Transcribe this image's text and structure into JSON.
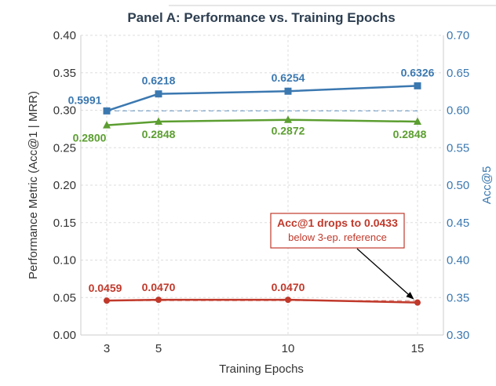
{
  "chart_data": {
    "type": "line",
    "title": "Panel A: Performance vs. Training Epochs",
    "xlabel": "Training Epochs",
    "ylabel": "Performance Metric (Acc@1 | MRR)",
    "y2label": "Acc@5",
    "x": [
      3,
      5,
      10,
      15
    ],
    "xticks": [
      "3",
      "5",
      "10",
      "15"
    ],
    "ylim": [
      0.0,
      0.4
    ],
    "yticks": [
      "0.00",
      "0.05",
      "0.10",
      "0.15",
      "0.20",
      "0.25",
      "0.30",
      "0.35",
      "0.40"
    ],
    "y2lim": [
      0.3,
      0.7
    ],
    "y2ticks": [
      "0.30",
      "0.35",
      "0.40",
      "0.45",
      "0.50",
      "0.55",
      "0.60",
      "0.65",
      "0.70"
    ],
    "grid": true,
    "series": [
      {
        "axis": "right",
        "color": "#3b78b0",
        "marker": "square",
        "values": [
          0.5991,
          0.6218,
          0.6254,
          0.6326
        ],
        "labels": [
          "0.5991",
          "0.6218",
          "0.6254",
          "0.6326"
        ],
        "reference": 0.5991
      },
      {
        "axis": "left",
        "color": "#5c9e31",
        "marker": "triangle",
        "values": [
          0.28,
          0.2848,
          0.2872,
          0.2848
        ],
        "labels": [
          "0.2800",
          "0.2848",
          "0.2872",
          "0.2848"
        ]
      },
      {
        "axis": "left",
        "color": "#c0392b",
        "marker": "circle",
        "values": [
          0.0459,
          0.047,
          0.047,
          0.0433
        ],
        "labels": [
          "0.0459",
          "0.0470",
          "0.0470",
          ""
        ],
        "reference": 0.0459
      }
    ],
    "annotation": {
      "text": "Acc@1 drops to 0.0433",
      "subtext": "below 3-ep. reference",
      "color": "#c0392b",
      "target_x": 15,
      "target_value": 0.0433
    }
  }
}
